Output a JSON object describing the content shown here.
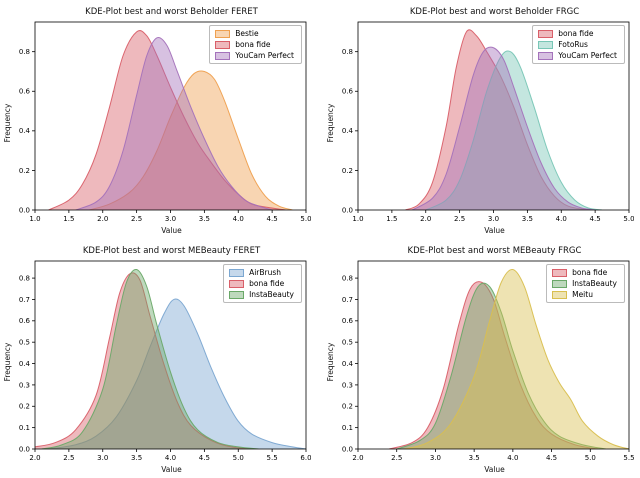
{
  "figure": {
    "background": "#ffffff",
    "text_color": "#111111",
    "axis_color": "#000000"
  },
  "chart_data": [
    {
      "type": "area",
      "title": "KDE-Plot best and worst Beholder FERET",
      "xlabel": "Value",
      "ylabel": "Frequency",
      "xlim": [
        1.0,
        5.0
      ],
      "ylim": [
        0.0,
        0.95
      ],
      "xticks": [
        1.0,
        1.5,
        2.0,
        2.5,
        3.0,
        3.5,
        4.0,
        4.5,
        5.0
      ],
      "yticks": [
        0.0,
        0.2,
        0.4,
        0.6,
        0.8
      ],
      "grid": false,
      "legend_position": "upper-right",
      "series": [
        {
          "name": "Bestie",
          "color": "#efa04f",
          "points": [
            [
              1.8,
              0
            ],
            [
              2.1,
              0.03
            ],
            [
              2.4,
              0.09
            ],
            [
              2.6,
              0.17
            ],
            [
              2.8,
              0.3
            ],
            [
              3.0,
              0.47
            ],
            [
              3.2,
              0.62
            ],
            [
              3.35,
              0.69
            ],
            [
              3.5,
              0.7
            ],
            [
              3.65,
              0.66
            ],
            [
              3.8,
              0.55
            ],
            [
              4.0,
              0.36
            ],
            [
              4.2,
              0.18
            ],
            [
              4.4,
              0.07
            ],
            [
              4.6,
              0.02
            ],
            [
              4.8,
              0
            ]
          ]
        },
        {
          "name": "bona fide",
          "color": "#d95f69",
          "points": [
            [
              1.2,
              0
            ],
            [
              1.5,
              0.05
            ],
            [
              1.7,
              0.13
            ],
            [
              1.9,
              0.28
            ],
            [
              2.1,
              0.52
            ],
            [
              2.3,
              0.78
            ],
            [
              2.5,
              0.9
            ],
            [
              2.65,
              0.88
            ],
            [
              2.8,
              0.78
            ],
            [
              3.0,
              0.62
            ],
            [
              3.2,
              0.47
            ],
            [
              3.4,
              0.34
            ],
            [
              3.6,
              0.24
            ],
            [
              3.8,
              0.15
            ],
            [
              4.0,
              0.08
            ],
            [
              4.2,
              0.03
            ],
            [
              4.5,
              0.01
            ],
            [
              4.7,
              0
            ]
          ]
        },
        {
          "name": "YouCam Perfect",
          "color": "#a472bb",
          "points": [
            [
              1.6,
              0
            ],
            [
              1.9,
              0.04
            ],
            [
              2.1,
              0.12
            ],
            [
              2.3,
              0.3
            ],
            [
              2.5,
              0.58
            ],
            [
              2.65,
              0.78
            ],
            [
              2.8,
              0.87
            ],
            [
              2.95,
              0.83
            ],
            [
              3.1,
              0.7
            ],
            [
              3.3,
              0.52
            ],
            [
              3.5,
              0.36
            ],
            [
              3.7,
              0.22
            ],
            [
              3.9,
              0.12
            ],
            [
              4.1,
              0.05
            ],
            [
              4.3,
              0.02
            ],
            [
              4.5,
              0
            ]
          ]
        }
      ]
    },
    {
      "type": "area",
      "title": "KDE-Plot best and worst Beholder FRGC",
      "xlabel": "Value",
      "ylabel": "Frequency",
      "xlim": [
        1.0,
        5.0
      ],
      "ylim": [
        0.0,
        0.95
      ],
      "xticks": [
        1.0,
        1.5,
        2.0,
        2.5,
        3.0,
        3.5,
        4.0,
        4.5,
        5.0
      ],
      "yticks": [
        0.0,
        0.2,
        0.4,
        0.6,
        0.8
      ],
      "grid": false,
      "legend_position": "upper-right",
      "series": [
        {
          "name": "bona fide",
          "color": "#d95f69",
          "points": [
            [
              1.7,
              0
            ],
            [
              1.9,
              0.03
            ],
            [
              2.1,
              0.14
            ],
            [
              2.3,
              0.42
            ],
            [
              2.45,
              0.72
            ],
            [
              2.6,
              0.9
            ],
            [
              2.75,
              0.88
            ],
            [
              2.9,
              0.8
            ],
            [
              3.1,
              0.68
            ],
            [
              3.3,
              0.52
            ],
            [
              3.5,
              0.33
            ],
            [
              3.7,
              0.17
            ],
            [
              3.9,
              0.07
            ],
            [
              4.1,
              0.02
            ],
            [
              4.4,
              0
            ]
          ]
        },
        {
          "name": "FotoRus",
          "color": "#79c6b6",
          "points": [
            [
              2.0,
              0
            ],
            [
              2.3,
              0.05
            ],
            [
              2.5,
              0.15
            ],
            [
              2.7,
              0.35
            ],
            [
              2.9,
              0.6
            ],
            [
              3.1,
              0.77
            ],
            [
              3.25,
              0.8
            ],
            [
              3.4,
              0.72
            ],
            [
              3.6,
              0.52
            ],
            [
              3.8,
              0.3
            ],
            [
              4.0,
              0.14
            ],
            [
              4.2,
              0.05
            ],
            [
              4.4,
              0.01
            ],
            [
              4.6,
              0
            ]
          ]
        },
        {
          "name": "YouCam Perfect",
          "color": "#a472bb",
          "points": [
            [
              1.8,
              0
            ],
            [
              2.1,
              0.06
            ],
            [
              2.3,
              0.18
            ],
            [
              2.5,
              0.42
            ],
            [
              2.7,
              0.68
            ],
            [
              2.85,
              0.8
            ],
            [
              3.0,
              0.82
            ],
            [
              3.15,
              0.76
            ],
            [
              3.3,
              0.62
            ],
            [
              3.5,
              0.42
            ],
            [
              3.7,
              0.24
            ],
            [
              3.9,
              0.11
            ],
            [
              4.1,
              0.04
            ],
            [
              4.3,
              0.01
            ],
            [
              4.5,
              0
            ]
          ]
        }
      ]
    },
    {
      "type": "area",
      "title": "KDE-Plot best and worst MEBeauty FERET",
      "xlabel": "Value",
      "ylabel": "Frequency",
      "xlim": [
        2.0,
        6.0
      ],
      "ylim": [
        0.0,
        0.88
      ],
      "xticks": [
        2.0,
        2.5,
        3.0,
        3.5,
        4.0,
        4.5,
        5.0,
        5.5,
        6.0
      ],
      "yticks": [
        0.0,
        0.1,
        0.2,
        0.3,
        0.4,
        0.5,
        0.6,
        0.7,
        0.8
      ],
      "grid": false,
      "legend_position": "upper-right",
      "series": [
        {
          "name": "AirBrush",
          "color": "#7ba7d1",
          "points": [
            [
              2.2,
              0
            ],
            [
              2.6,
              0.02
            ],
            [
              2.9,
              0.06
            ],
            [
              3.2,
              0.15
            ],
            [
              3.5,
              0.32
            ],
            [
              3.7,
              0.48
            ],
            [
              3.9,
              0.63
            ],
            [
              4.05,
              0.7
            ],
            [
              4.2,
              0.67
            ],
            [
              4.4,
              0.54
            ],
            [
              4.6,
              0.38
            ],
            [
              4.8,
              0.24
            ],
            [
              5.0,
              0.13
            ],
            [
              5.2,
              0.07
            ],
            [
              5.5,
              0.03
            ],
            [
              5.8,
              0.01
            ],
            [
              6.0,
              0
            ]
          ]
        },
        {
          "name": "bona fide",
          "color": "#d95f69",
          "points": [
            [
              2.0,
              0.01
            ],
            [
              2.3,
              0.03
            ],
            [
              2.6,
              0.09
            ],
            [
              2.9,
              0.25
            ],
            [
              3.1,
              0.52
            ],
            [
              3.25,
              0.73
            ],
            [
              3.4,
              0.82
            ],
            [
              3.55,
              0.79
            ],
            [
              3.7,
              0.62
            ],
            [
              3.9,
              0.4
            ],
            [
              4.1,
              0.22
            ],
            [
              4.3,
              0.11
            ],
            [
              4.6,
              0.04
            ],
            [
              4.9,
              0.01
            ],
            [
              5.2,
              0
            ]
          ]
        },
        {
          "name": "InstaBeauty",
          "color": "#6aa868",
          "points": [
            [
              2.1,
              0
            ],
            [
              2.4,
              0.02
            ],
            [
              2.7,
              0.08
            ],
            [
              3.0,
              0.28
            ],
            [
              3.2,
              0.58
            ],
            [
              3.35,
              0.78
            ],
            [
              3.5,
              0.84
            ],
            [
              3.65,
              0.76
            ],
            [
              3.8,
              0.58
            ],
            [
              4.0,
              0.36
            ],
            [
              4.2,
              0.19
            ],
            [
              4.4,
              0.09
            ],
            [
              4.7,
              0.03
            ],
            [
              5.0,
              0.01
            ],
            [
              5.3,
              0
            ]
          ]
        }
      ]
    },
    {
      "type": "area",
      "title": "KDE-Plot best and worst MEBeauty FRGC",
      "xlabel": "Value",
      "ylabel": "Frequency",
      "xlim": [
        2.0,
        5.5
      ],
      "ylim": [
        0.0,
        0.88
      ],
      "xticks": [
        2.0,
        2.5,
        3.0,
        3.5,
        4.0,
        4.5,
        5.0,
        5.5
      ],
      "yticks": [
        0.0,
        0.1,
        0.2,
        0.3,
        0.4,
        0.5,
        0.6,
        0.7,
        0.8
      ],
      "grid": false,
      "legend_position": "upper-right",
      "series": [
        {
          "name": "bona fide",
          "color": "#d95f69",
          "points": [
            [
              2.4,
              0
            ],
            [
              2.7,
              0.03
            ],
            [
              2.9,
              0.1
            ],
            [
              3.1,
              0.28
            ],
            [
              3.3,
              0.58
            ],
            [
              3.45,
              0.75
            ],
            [
              3.6,
              0.78
            ],
            [
              3.75,
              0.7
            ],
            [
              3.9,
              0.52
            ],
            [
              4.1,
              0.3
            ],
            [
              4.3,
              0.15
            ],
            [
              4.5,
              0.07
            ],
            [
              4.8,
              0.02
            ],
            [
              5.1,
              0
            ]
          ]
        },
        {
          "name": "InstaBeauty",
          "color": "#6aa868",
          "points": [
            [
              2.5,
              0
            ],
            [
              2.8,
              0.04
            ],
            [
              3.0,
              0.12
            ],
            [
              3.2,
              0.34
            ],
            [
              3.4,
              0.62
            ],
            [
              3.55,
              0.76
            ],
            [
              3.7,
              0.76
            ],
            [
              3.85,
              0.64
            ],
            [
              4.0,
              0.46
            ],
            [
              4.2,
              0.26
            ],
            [
              4.4,
              0.13
            ],
            [
              4.6,
              0.06
            ],
            [
              4.9,
              0.02
            ],
            [
              5.2,
              0
            ]
          ]
        },
        {
          "name": "Meitu",
          "color": "#d9bf4f",
          "points": [
            [
              2.6,
              0
            ],
            [
              2.9,
              0.03
            ],
            [
              3.2,
              0.12
            ],
            [
              3.5,
              0.34
            ],
            [
              3.7,
              0.6
            ],
            [
              3.85,
              0.78
            ],
            [
              4.0,
              0.84
            ],
            [
              4.15,
              0.76
            ],
            [
              4.3,
              0.58
            ],
            [
              4.45,
              0.42
            ],
            [
              4.6,
              0.31
            ],
            [
              4.75,
              0.23
            ],
            [
              4.9,
              0.13
            ],
            [
              5.1,
              0.06
            ],
            [
              5.3,
              0.02
            ],
            [
              5.5,
              0
            ]
          ]
        }
      ]
    }
  ]
}
